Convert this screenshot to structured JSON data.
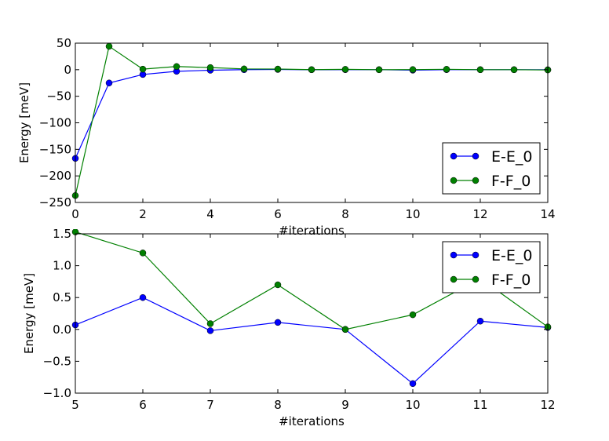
{
  "chart_data": [
    {
      "type": "line",
      "title": "",
      "xlabel": "#iterations",
      "ylabel": "Energy [meV]",
      "xlim": [
        0,
        14
      ],
      "ylim": [
        -250,
        50
      ],
      "xticks": [
        0,
        2,
        4,
        6,
        8,
        10,
        12,
        14
      ],
      "yticks": [
        -250,
        -200,
        -150,
        -100,
        -50,
        0,
        50
      ],
      "grid": false,
      "legend_position": "lower-right",
      "x": [
        0,
        1,
        2,
        3,
        4,
        5,
        6,
        7,
        8,
        9,
        10,
        11,
        12,
        13,
        14
      ],
      "series": [
        {
          "name": "E-E_0",
          "color": "#0000ff",
          "values": [
            -167,
            -25,
            -9,
            -3,
            -1,
            0.07,
            0.5,
            -0.02,
            0.11,
            0,
            -0.85,
            0.13,
            0.03,
            0,
            -0.1
          ]
        },
        {
          "name": "F-F_0",
          "color": "#008000",
          "values": [
            -237,
            44,
            1,
            6,
            4,
            1.5,
            1.2,
            0.09,
            0.7,
            0,
            0.23,
            0.8,
            0.04,
            0,
            -0.5
          ]
        }
      ]
    },
    {
      "type": "line",
      "title": "",
      "xlabel": "#iterations",
      "ylabel": "Energy [meV]",
      "xlim": [
        5,
        12
      ],
      "ylim": [
        -1.0,
        1.5
      ],
      "xticks": [
        5,
        6,
        7,
        8,
        9,
        10,
        11,
        12
      ],
      "yticks": [
        -1.0,
        -0.5,
        0.0,
        0.5,
        1.0,
        1.5
      ],
      "grid": false,
      "legend_position": "upper-right",
      "x": [
        5,
        6,
        7,
        8,
        9,
        10,
        11,
        12
      ],
      "series": [
        {
          "name": "E-E_0",
          "color": "#0000ff",
          "values": [
            0.07,
            0.5,
            -0.02,
            0.11,
            0,
            -0.85,
            0.13,
            0.03
          ]
        },
        {
          "name": "F-F_0",
          "color": "#008000",
          "values": [
            1.53,
            1.2,
            0.09,
            0.7,
            0,
            0.23,
            0.8,
            0.04
          ]
        }
      ]
    }
  ]
}
